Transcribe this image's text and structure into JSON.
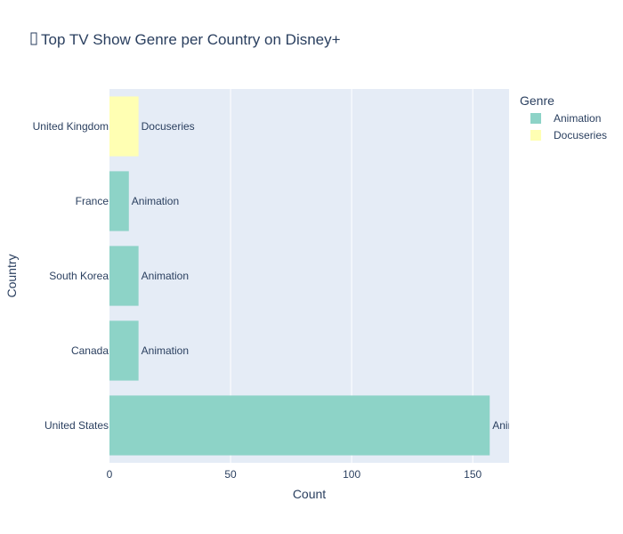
{
  "chart_data": {
    "type": "bar",
    "orientation": "horizontal",
    "title": "Top TV Show Genre per Country on Disney+",
    "title_icon": "tv-icon",
    "xlabel": "Count",
    "ylabel": "Country",
    "xlim": [
      0,
      165
    ],
    "x_ticks": [
      0,
      50,
      100,
      150
    ],
    "grid": true,
    "legend": {
      "title": "Genre",
      "placement": "top-right",
      "entries": [
        {
          "name": "Animation",
          "color": "#8dd3c7"
        },
        {
          "name": "Docuseries",
          "color": "#ffffb3"
        }
      ]
    },
    "categories": [
      "United Kingdom",
      "France",
      "South Korea",
      "Canada",
      "United States"
    ],
    "bars": [
      {
        "country": "United Kingdom",
        "genre": "Docuseries",
        "value": 12
      },
      {
        "country": "France",
        "genre": "Animation",
        "value": 8
      },
      {
        "country": "South Korea",
        "genre": "Animation",
        "value": 12
      },
      {
        "country": "Canada",
        "genre": "Animation",
        "value": 12
      },
      {
        "country": "United States",
        "genre": "Animation",
        "value": 157
      }
    ],
    "colors": {
      "plot_background": "#e5ecf6",
      "gridline": "#ffffff",
      "text": "#2a3f5f"
    }
  }
}
